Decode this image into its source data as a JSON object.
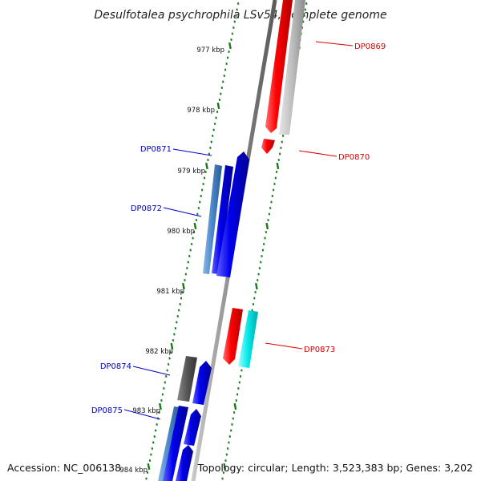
{
  "title": "Desulfotalea psychrophila LSv54, complete genome",
  "footer": {
    "accession": "Accession: NC_006138",
    "info": "Topology: circular; Length: 3,523,383 bp; Genes: 3,202"
  },
  "kbp_labels": [
    "977 kbp",
    "978 kbp",
    "979 kbp",
    "980 kbp",
    "981 kbp",
    "982 kbp",
    "983 kbp",
    "984 kbp"
  ],
  "genes": [
    {
      "name": "DP0869",
      "strand": "forward"
    },
    {
      "name": "DP0870",
      "strand": "forward"
    },
    {
      "name": "DP0871",
      "strand": "reverse"
    },
    {
      "name": "DP0872",
      "strand": "reverse"
    },
    {
      "name": "DP0873",
      "strand": "forward"
    },
    {
      "name": "DP0874",
      "strand": "reverse"
    },
    {
      "name": "DP0875",
      "strand": "reverse"
    }
  ],
  "colors": {
    "forward_label": "#dd0000",
    "reverse_label": "#0000cc",
    "forward_gene": "#ff0000",
    "reverse_gene": "#0000ee",
    "tick": "#1a7a1a",
    "backbone": "#888888",
    "light_blue_gene": "#4a86c8",
    "gray_gene": "#bbbbbb",
    "dark_gray_gene": "#555555",
    "cyan_gene": "#00e8e8"
  }
}
